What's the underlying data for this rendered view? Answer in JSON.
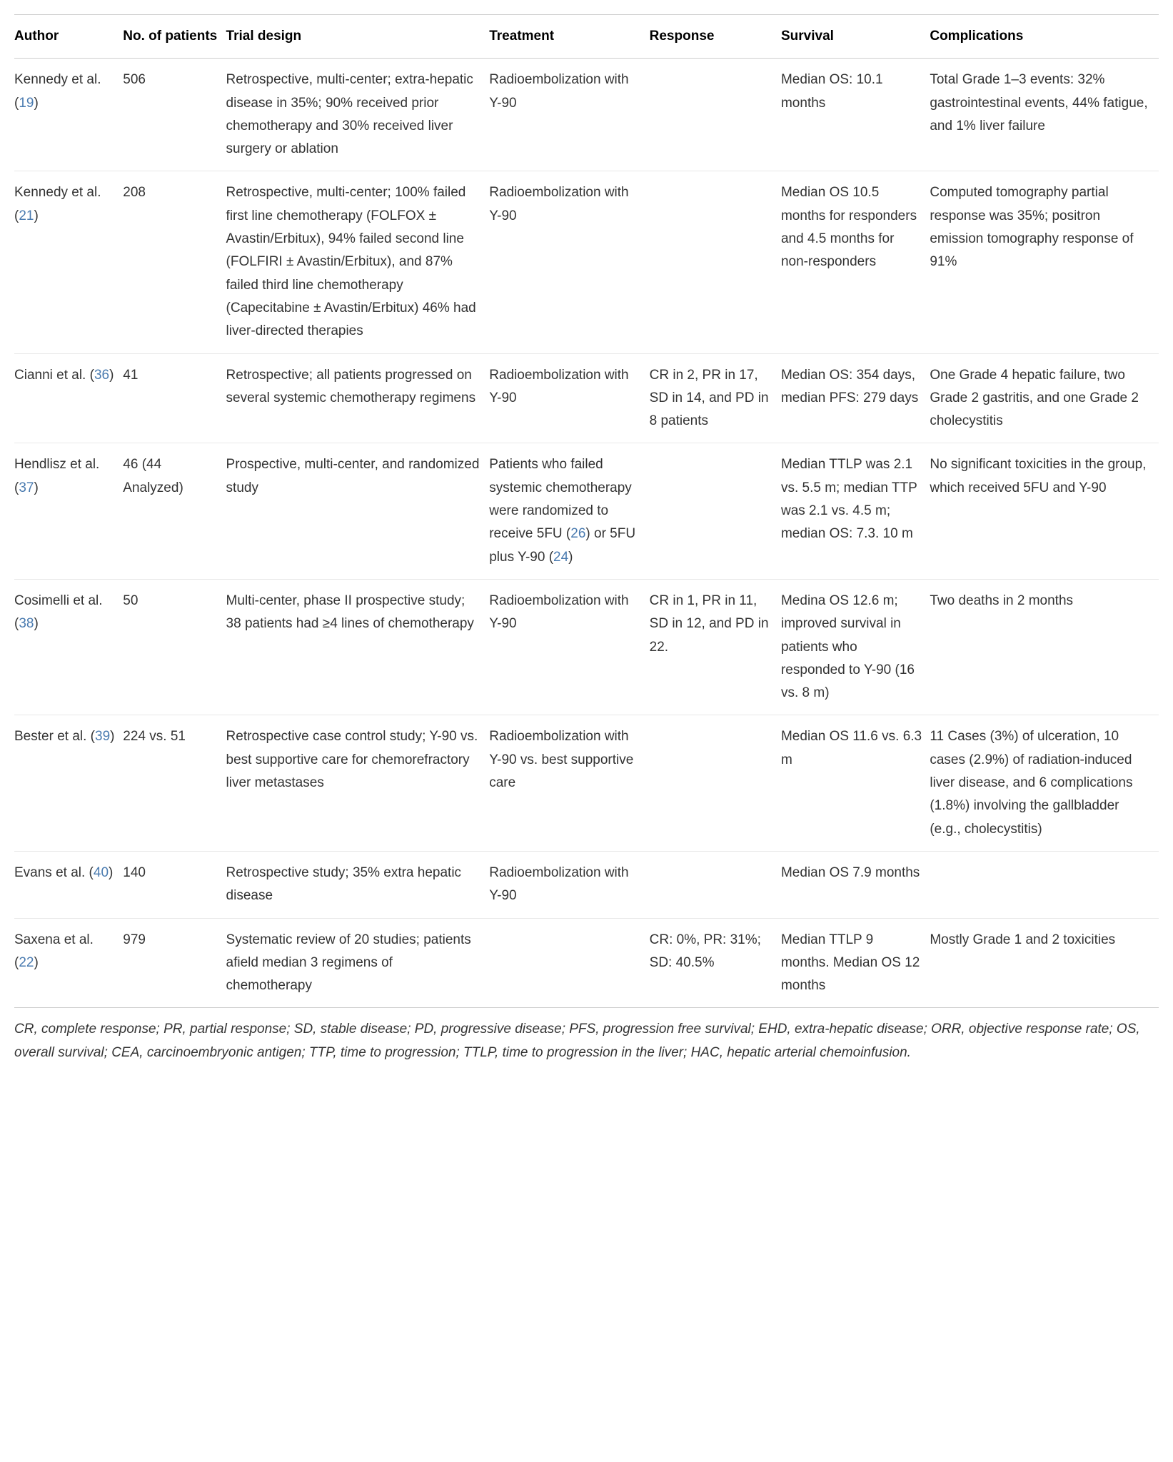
{
  "table": {
    "columns": [
      "Author",
      "No. of patients",
      "Trial design",
      "Treatment",
      "Response",
      "Survival",
      "Complications"
    ],
    "rows": [
      {
        "author_pre": "Kennedy et al. (",
        "author_ref": "19",
        "author_post": ")",
        "patients": "506",
        "trial": "Retrospective, multi-center; extra-hepatic disease in 35%; 90% received prior chemotherapy and 30% received liver surgery or ablation",
        "treatment": "Radioembolization with Y-90",
        "response": "",
        "survival": "Median OS: 10.1 months",
        "complications": "Total Grade 1–3 events: 32% gastrointestinal events, 44% fatigue, and 1% liver failure"
      },
      {
        "author_pre": "Kennedy et al. (",
        "author_ref": "21",
        "author_post": ")",
        "patients": "208",
        "trial": "Retrospective, multi-center; 100% failed first line chemotherapy (FOLFOX ± Avastin/Erbitux), 94% failed second line (FOLFIRI ± Avastin/Erbitux), and 87% failed third line chemotherapy (Capecitabine ± Avastin/Erbitux) 46% had liver-directed therapies",
        "treatment": "Radioembolization with Y-90",
        "response": "",
        "survival": "Median OS 10.5 months for responders and 4.5 months for non-responders",
        "complications": "Computed tomography partial response was 35%; positron emission tomography response of 91%"
      },
      {
        "author_pre": "Cianni et al. (",
        "author_ref": "36",
        "author_post": ")",
        "patients": "41",
        "trial": "Retrospective; all patients progressed on several systemic chemotherapy regimens",
        "treatment": "Radioembolization with Y-90",
        "response": "CR in 2, PR in 17, SD in 14, and PD in 8 patients",
        "survival": "Median OS: 354 days, median PFS: 279 days",
        "complications": "One Grade 4 hepatic failure, two Grade 2 gastritis, and one Grade 2 cholecystitis"
      },
      {
        "author_pre": "Hendlisz et al. (",
        "author_ref": "37",
        "author_post": ")",
        "patients": "46 (44 Analyzed)",
        "trial": "Prospective, multi-center, and randomized study",
        "treatment_pre": "Patients who failed systemic chemotherapy were randomized to receive 5FU (",
        "treatment_ref1": "26",
        "treatment_mid": ") or 5FU plus Y-90 (",
        "treatment_ref2": "24",
        "treatment_post": ")",
        "response": "",
        "survival": "Median TTLP was 2.1 vs. 5.5 m; median TTP was 2.1 vs. 4.5 m; median OS: 7.3. 10 m",
        "complications": "No significant toxicities in the group, which received 5FU and Y-90"
      },
      {
        "author_pre": "Cosimelli et al. (",
        "author_ref": "38",
        "author_post": ")",
        "patients": "50",
        "trial": "Multi-center, phase II prospective study; 38 patients had ≥4 lines of chemotherapy",
        "treatment": "Radioembolization with Y-90",
        "response": "CR in 1, PR in 11, SD in 12, and PD in 22.",
        "survival": "Medina OS 12.6 m; improved survival in patients who responded to Y-90 (16 vs. 8 m)",
        "complications": "Two deaths in 2 months"
      },
      {
        "author_pre": "Bester et al. (",
        "author_ref": "39",
        "author_post": ")",
        "patients": "224 vs. 51",
        "trial": "Retrospective case control study; Y-90 vs. best supportive care for chemorefractory liver metastases",
        "treatment": "Radioembolization with Y-90 vs. best supportive care",
        "response": "",
        "survival": "Median OS 11.6 vs. 6.3 m",
        "complications": "11 Cases (3%) of ulceration, 10 cases (2.9%) of radiation-induced liver disease, and 6 complications (1.8%) involving the gallbladder (e.g., cholecystitis)"
      },
      {
        "author_pre": "Evans et al. (",
        "author_ref": "40",
        "author_post": ")",
        "patients": "140",
        "trial": "Retrospective study; 35% extra hepatic disease",
        "treatment": "Radioembolization with Y-90",
        "response": "",
        "survival": "Median OS 7.9 months",
        "complications": ""
      },
      {
        "author_pre": "Saxena et al. (",
        "author_ref": "22",
        "author_post": ")",
        "patients": "979",
        "trial": "Systematic review of 20 studies; patients afield median 3 regimens of chemotherapy",
        "treatment": "",
        "response": "CR: 0%, PR: 31%; SD: 40.5%",
        "survival": "Median TTLP 9 months. Median OS 12 months",
        "complications": "Mostly Grade 1 and 2 toxicities"
      }
    ]
  },
  "footnote": "CR, complete response; PR, partial response; SD, stable disease; PD, progressive disease; PFS, progression free survival; EHD, extra-hepatic disease; ORR, objective response rate; OS, overall survival; CEA, carcinoembryonic antigen; TTP, time to progression; TTLP, time to progression in the liver; HAC, hepatic arterial chemoinfusion.",
  "styling": {
    "font_family": "Arial, Helvetica, sans-serif",
    "base_font_size": 19,
    "text_color": "#333333",
    "header_color": "#000000",
    "ref_color": "#4a7bb0",
    "border_color": "#cccccc",
    "row_border_color": "#e8e8e8",
    "background_color": "#ffffff",
    "line_height": 1.7
  }
}
